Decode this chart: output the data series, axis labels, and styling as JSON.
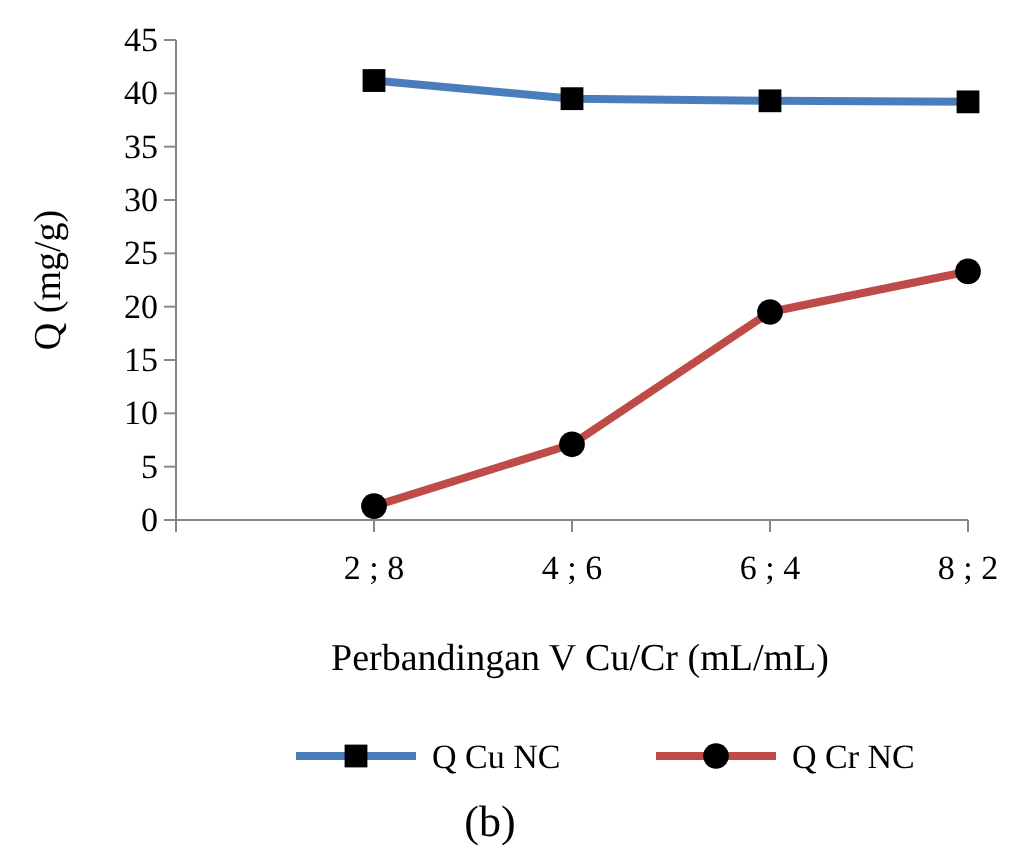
{
  "chart_data": {
    "type": "line",
    "title": "(b)",
    "xlabel": "Perbandingan  V Cu/Cr (mL/mL)",
    "ylabel": "Q (mg/g)",
    "categories": [
      null,
      "2 ; 8",
      "4 ; 6",
      "6 ; 4",
      "8 ; 2"
    ],
    "series": [
      {
        "name": "Q Cu NC",
        "color": "#4a7ebb",
        "marker": "square",
        "values": [
          null,
          41.2,
          39.5,
          39.3,
          39.2
        ]
      },
      {
        "name": "Q Cr NC",
        "color": "#be4b48",
        "marker": "circle",
        "values": [
          null,
          1.3,
          7.1,
          19.5,
          23.3
        ]
      }
    ],
    "ylim": [
      0,
      45
    ],
    "yticks": [
      0,
      5,
      10,
      15,
      20,
      25,
      30,
      35,
      40,
      45
    ],
    "grid": false,
    "legend": "bottom"
  }
}
